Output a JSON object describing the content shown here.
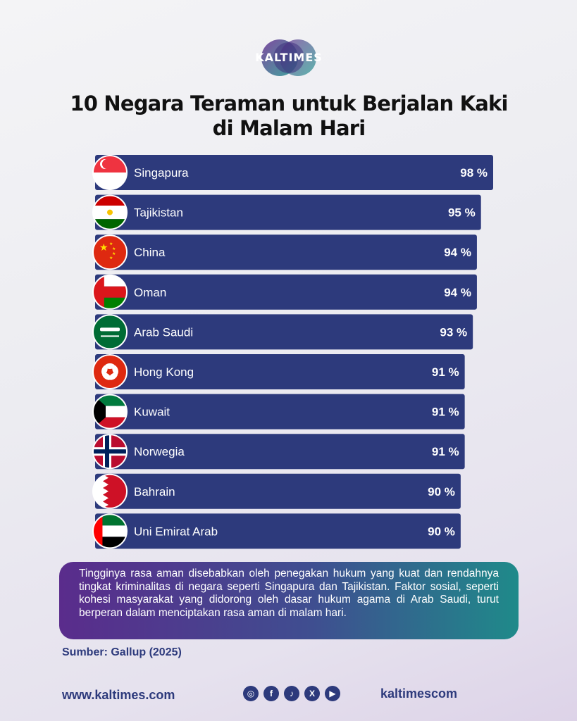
{
  "brand": {
    "name": "KALTIMES"
  },
  "chart_data": {
    "type": "bar",
    "orientation": "horizontal",
    "title": "10 Negara Teraman untuk Berjalan Kaki di Malam Hari",
    "title_lines": [
      "10 Negara Teraman untuk Berjalan Kaki",
      "di Malam Hari"
    ],
    "categories": [
      "Singapura",
      "Tajikistan",
      "China",
      "Oman",
      "Arab Saudi",
      "Hong Kong",
      "Kuwait",
      "Norwegia",
      "Bahrain",
      "Uni Emirat Arab"
    ],
    "values": [
      98,
      95,
      94,
      94,
      93,
      91,
      91,
      91,
      90,
      90
    ],
    "value_labels": [
      "98 %",
      "95 %",
      "94 %",
      "94 %",
      "93 %",
      "91 %",
      "91 %",
      "91 %",
      "90 %",
      "90 %"
    ],
    "flags": [
      "singapore-flag",
      "tajikistan-flag",
      "china-flag",
      "oman-flag",
      "saudi-arabia-flag",
      "hong-kong-flag",
      "kuwait-flag",
      "norway-flag",
      "bahrain-flag",
      "uae-flag"
    ],
    "unit": "%",
    "bar_color": "#2d3a7c",
    "grid": false,
    "legend": "none"
  },
  "description": "Tingginya rasa aman disebabkan oleh penegakan hukum yang kuat dan rendahnya tingkat kriminalitas di negara seperti Singapura dan Tajikistan. Faktor sosial, seperti kohesi masyarakat yang didorong oleh dasar hukum agama di Arab Saudi, turut berperan dalam menciptakan rasa aman di malam hari.",
  "source": "Sumber: Gallup (2025)",
  "footer": {
    "website": "www.kaltimes.com",
    "handle": "kaltimescom",
    "social_icons": [
      "instagram-icon",
      "facebook-icon",
      "tiktok-icon",
      "x-icon",
      "youtube-icon"
    ]
  }
}
